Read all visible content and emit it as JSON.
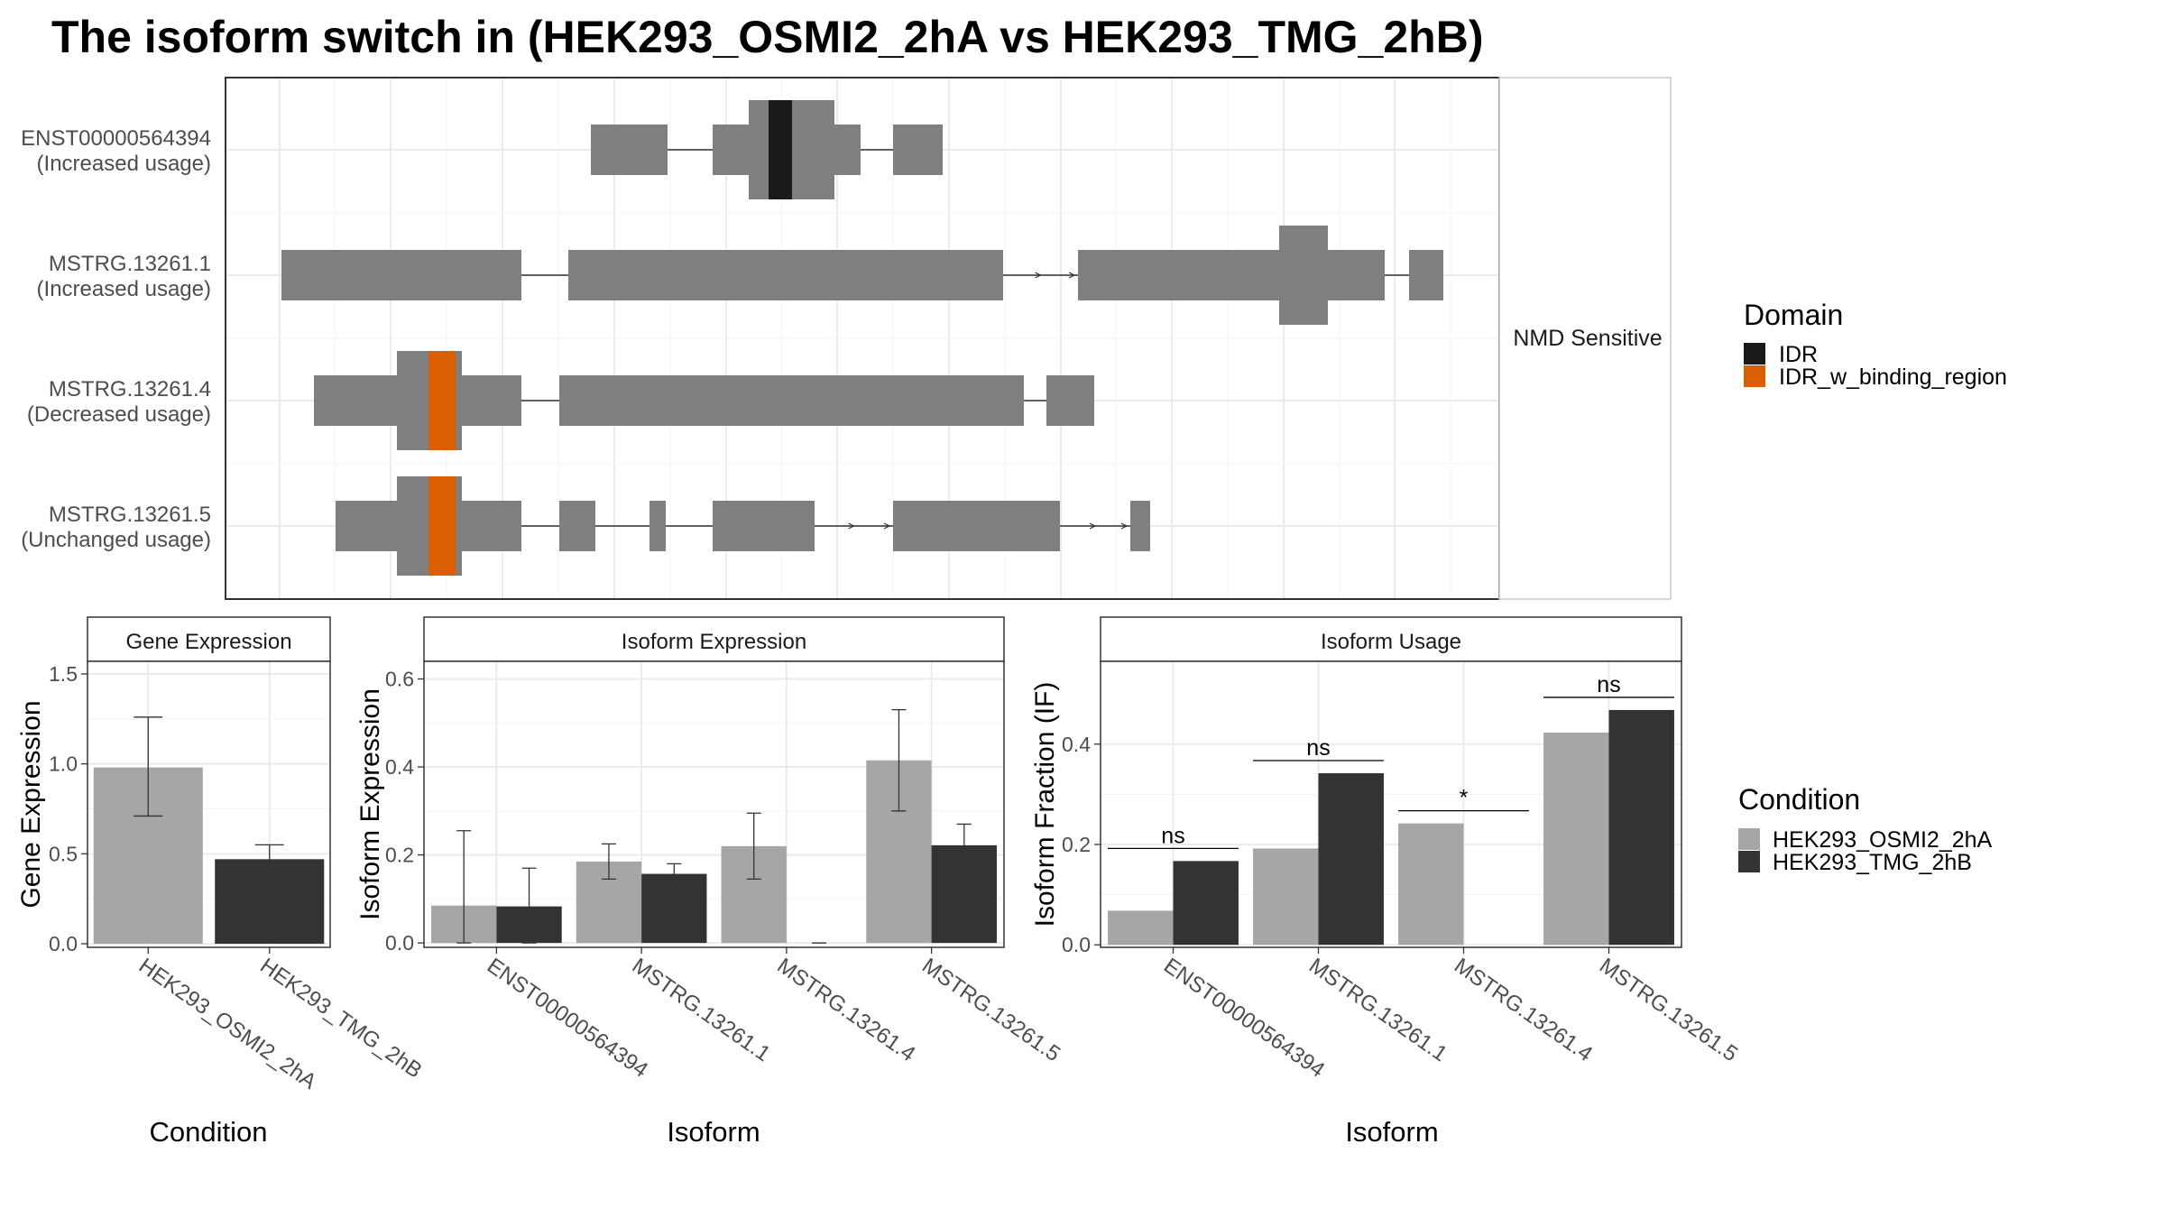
{
  "title": "The isoform switch in  (HEK293_OSMI2_2hA vs HEK293_TMG_2hB)",
  "colors": {
    "exon": "#7f7f7f",
    "idr": "#1a1a1a",
    "idr_binding": "#d95f02",
    "cond_a": "#a6a6a6",
    "cond_b": "#333333",
    "grid": "#ebebeb",
    "border": "#333333",
    "strip": "#ffffff"
  },
  "structure": {
    "strip_label": "NMD Sensitive",
    "isoforms": [
      {
        "id": "ENST00000564394",
        "usage": "(Increased usage)"
      },
      {
        "id": "MSTRG.13261.1",
        "usage": "(Increased usage)"
      },
      {
        "id": "MSTRG.13261.4",
        "usage": "(Decreased usage)"
      },
      {
        "id": "MSTRG.13261.5",
        "usage": "(Unchanged usage)"
      }
    ]
  },
  "legend_domain": {
    "title": "Domain",
    "items": [
      {
        "label": "IDR",
        "color": "#1a1a1a"
      },
      {
        "label": "IDR_w_binding_region",
        "color": "#d95f02"
      }
    ]
  },
  "legend_condition": {
    "title": "Condition",
    "items": [
      {
        "label": "HEK293_OSMI2_2hA",
        "color": "#a6a6a6"
      },
      {
        "label": "HEK293_TMG_2hB",
        "color": "#333333"
      }
    ]
  },
  "chart_data": [
    {
      "type": "bar",
      "title": "Gene Expression",
      "xlabel": "Condition",
      "ylabel": "Gene Expression",
      "categories": [
        "HEK293_OSMI2_2hA",
        "HEK293_TMG_2hB"
      ],
      "values": [
        0.98,
        0.47
      ],
      "errors": [
        [
          0.71,
          1.26
        ],
        [
          0.4,
          0.55
        ]
      ],
      "yticks": [
        "0.0",
        "0.5",
        "1.0",
        "1.5"
      ],
      "ylim": [
        -0.02,
        1.57
      ]
    },
    {
      "type": "bar",
      "title": "Isoform Expression",
      "xlabel": "Isoform",
      "ylabel": "Isoform Expression",
      "categories": [
        "ENST00000564394",
        "MSTRG.13261.1",
        "MSTRG.13261.4",
        "MSTRG.13261.5"
      ],
      "series": [
        {
          "name": "HEK293_OSMI2_2hA",
          "values": [
            0.085,
            0.185,
            0.22,
            0.415
          ],
          "errors": [
            [
              0.0,
              0.255
            ],
            [
              0.145,
              0.225
            ],
            [
              0.145,
              0.295
            ],
            [
              0.3,
              0.53
            ]
          ]
        },
        {
          "name": "HEK293_TMG_2hB",
          "values": [
            0.083,
            0.157,
            0.0,
            0.222
          ],
          "errors": [
            [
              0.0,
              0.17
            ],
            [
              0.135,
              0.18
            ],
            [
              0.0,
              0.0
            ],
            [
              0.175,
              0.27
            ]
          ]
        }
      ],
      "yticks": [
        "0.0",
        "0.2",
        "0.4",
        "0.6"
      ],
      "ylim": [
        -0.01,
        0.64
      ]
    },
    {
      "type": "bar",
      "title": "Isoform Usage",
      "xlabel": "Isoform",
      "ylabel": "Isoform Fraction (IF)",
      "categories": [
        "ENST00000564394",
        "MSTRG.13261.1",
        "MSTRG.13261.4",
        "MSTRG.13261.5"
      ],
      "series": [
        {
          "name": "HEK293_OSMI2_2hA",
          "values": [
            0.068,
            0.192,
            0.242,
            0.423
          ]
        },
        {
          "name": "HEK293_TMG_2hB",
          "values": [
            0.167,
            0.342,
            0.0,
            0.468
          ]
        }
      ],
      "significance": [
        "ns",
        "ns",
        "*",
        "ns"
      ],
      "yticks": [
        "0.0",
        "0.2",
        "0.4"
      ],
      "ylim": [
        -0.005,
        0.565
      ]
    }
  ]
}
